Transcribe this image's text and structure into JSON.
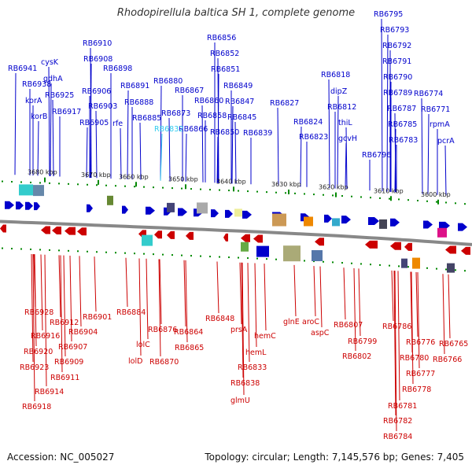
{
  "title": "Rhodopirellula baltica SH 1, complete genome",
  "footer": {
    "accession": "Accession: NC_005027",
    "stats": "Topology: circular; Length: 7,145,576 bp; Genes: 7,405"
  },
  "colors": {
    "forward": "#0000cc",
    "reverse": "#cc0000",
    "highlight": "#33ccee",
    "backbone": "#888888",
    "tick": "#008800"
  },
  "kbp_ticks": [
    {
      "label": "3680 kbp",
      "kbp": 3680
    },
    {
      "label": "3670 kbp",
      "kbp": 3670
    },
    {
      "label": "3660 kbp",
      "kbp": 3660
    },
    {
      "label": "3650 kbp",
      "kbp": 3650
    },
    {
      "label": "3640 kbp",
      "kbp": 3640
    },
    {
      "label": "3630 kbp",
      "kbp": 3630
    },
    {
      "label": "3620 kbp",
      "kbp": 3620
    },
    {
      "label": "3610 kbp",
      "kbp": 3610
    },
    {
      "label": "3600 kbp",
      "kbp": 3600
    }
  ],
  "forward_labels": [
    "RB6941",
    "RB6938",
    "cysK",
    "gdhA",
    "korA",
    "RB6925",
    "korB",
    "RB6917",
    "RB6910",
    "RB6908",
    "RB6906",
    "RB6903",
    "RB6905",
    "RB6898",
    "rfe",
    "RB6891",
    "RB6888",
    "RB6885",
    "RB6880",
    "RB6867",
    "RB6873",
    "RB6866",
    "RB6856",
    "RB6852",
    "RB6851",
    "RB6849",
    "RB6860",
    "RB6847",
    "RB6858",
    "RB6845",
    "RB6850",
    "RB6839",
    "RB6827",
    "RB6824",
    "RB6823",
    "RB6818",
    "dipZ",
    "RB6812",
    "thiL",
    "gcvH",
    "RB6796",
    "RB6795",
    "RB6793",
    "RB6792",
    "RB6791",
    "RB6790",
    "RB6789",
    "RB6787",
    "RB6785",
    "RB6783",
    "RB6774",
    "RB6771",
    "rpmA",
    "pcrA"
  ],
  "highlight_label": "RB6832",
  "reverse_labels": [
    "RB6928",
    "RB6916",
    "RB6920",
    "RB6923",
    "RB6912",
    "RB6914",
    "RB6918",
    "RB6907",
    "RB6909",
    "RB6911",
    "RB6904",
    "RB6901",
    "RB6884",
    "lolC",
    "lolD",
    "RB6876",
    "RB6870",
    "RB6864",
    "RB6865",
    "RB6848",
    "prsA",
    "RB6833",
    "RB6838",
    "glmU",
    "hemL",
    "hemC",
    "glnE",
    "aroC",
    "aspC",
    "RB6807",
    "RB6799",
    "RB6802",
    "RB6786",
    "RB6776",
    "RB6780",
    "RB6777",
    "RB6778",
    "RB6781",
    "RB6782",
    "RB6784",
    "RB6765",
    "RB6766"
  ]
}
